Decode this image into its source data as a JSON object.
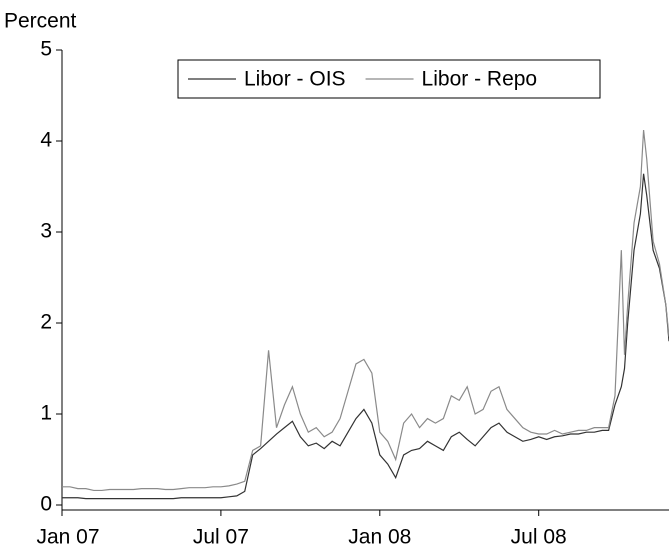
{
  "chart_data": {
    "type": "line",
    "y_label": "Percent",
    "x": [
      2007.0,
      2007.025,
      2007.05,
      2007.075,
      2007.1,
      2007.125,
      2007.15,
      2007.175,
      2007.2,
      2007.225,
      2007.25,
      2007.275,
      2007.3,
      2007.325,
      2007.35,
      2007.375,
      2007.4,
      2007.425,
      2007.45,
      2007.475,
      2007.5,
      2007.525,
      2007.55,
      2007.575,
      2007.6,
      2007.625,
      2007.65,
      2007.675,
      2007.7,
      2007.725,
      2007.75,
      2007.775,
      2007.8,
      2007.825,
      2007.85,
      2007.875,
      2007.9,
      2007.925,
      2007.95,
      2007.975,
      2008.0,
      2008.025,
      2008.05,
      2008.075,
      2008.1,
      2008.125,
      2008.15,
      2008.175,
      2008.2,
      2008.225,
      2008.25,
      2008.275,
      2008.3,
      2008.325,
      2008.35,
      2008.375,
      2008.4,
      2008.425,
      2008.45,
      2008.475,
      2008.5,
      2008.525,
      2008.55,
      2008.575,
      2008.6,
      2008.625,
      2008.65,
      2008.675,
      2008.7,
      2008.72,
      2008.74,
      2008.76,
      2008.77,
      2008.78,
      2008.8,
      2008.82,
      2008.83,
      2008.84,
      2008.86,
      2008.88,
      2008.9,
      2008.91
    ],
    "series": [
      {
        "name": "Libor - OIS",
        "color": "#333333",
        "values": [
          0.08,
          0.08,
          0.08,
          0.07,
          0.07,
          0.07,
          0.07,
          0.07,
          0.07,
          0.07,
          0.07,
          0.07,
          0.07,
          0.07,
          0.07,
          0.08,
          0.08,
          0.08,
          0.08,
          0.08,
          0.08,
          0.09,
          0.1,
          0.15,
          0.55,
          0.62,
          0.7,
          0.78,
          0.85,
          0.92,
          0.75,
          0.65,
          0.68,
          0.62,
          0.7,
          0.65,
          0.8,
          0.95,
          1.05,
          0.9,
          0.55,
          0.45,
          0.3,
          0.55,
          0.6,
          0.62,
          0.7,
          0.65,
          0.6,
          0.75,
          0.8,
          0.72,
          0.65,
          0.75,
          0.85,
          0.9,
          0.8,
          0.75,
          0.7,
          0.72,
          0.75,
          0.72,
          0.75,
          0.76,
          0.78,
          0.78,
          0.8,
          0.8,
          0.82,
          0.82,
          1.1,
          1.3,
          1.5,
          2.0,
          2.8,
          3.2,
          3.64,
          3.4,
          2.8,
          2.6,
          2.2,
          1.8
        ]
      },
      {
        "name": "Libor - Repo",
        "color": "#8a8a8a",
        "values": [
          0.2,
          0.2,
          0.18,
          0.18,
          0.16,
          0.16,
          0.17,
          0.17,
          0.17,
          0.17,
          0.18,
          0.18,
          0.18,
          0.17,
          0.17,
          0.18,
          0.19,
          0.19,
          0.19,
          0.2,
          0.2,
          0.21,
          0.23,
          0.26,
          0.6,
          0.65,
          1.7,
          0.85,
          1.1,
          1.3,
          1.0,
          0.8,
          0.85,
          0.75,
          0.8,
          0.95,
          1.25,
          1.55,
          1.6,
          1.45,
          0.8,
          0.7,
          0.5,
          0.9,
          1.0,
          0.85,
          0.95,
          0.9,
          0.95,
          1.2,
          1.15,
          1.3,
          1.0,
          1.05,
          1.25,
          1.3,
          1.05,
          0.95,
          0.85,
          0.8,
          0.78,
          0.78,
          0.82,
          0.78,
          0.8,
          0.82,
          0.82,
          0.85,
          0.85,
          0.85,
          1.2,
          2.8,
          1.65,
          2.2,
          3.1,
          3.5,
          4.12,
          3.8,
          2.9,
          2.65,
          2.2,
          1.85
        ]
      }
    ],
    "xlim": [
      2007,
      2008.91
    ],
    "xticks": [
      {
        "value": 2007,
        "label": "Jan 07"
      },
      {
        "value": 2007.5,
        "label": "Jul 07"
      },
      {
        "value": 2008,
        "label": "Jan 08"
      },
      {
        "value": 2008.5,
        "label": "Jul 08"
      }
    ],
    "ylim": [
      0,
      5
    ],
    "yticks": [
      0,
      1,
      2,
      3,
      4,
      5
    ],
    "legend": "top"
  }
}
